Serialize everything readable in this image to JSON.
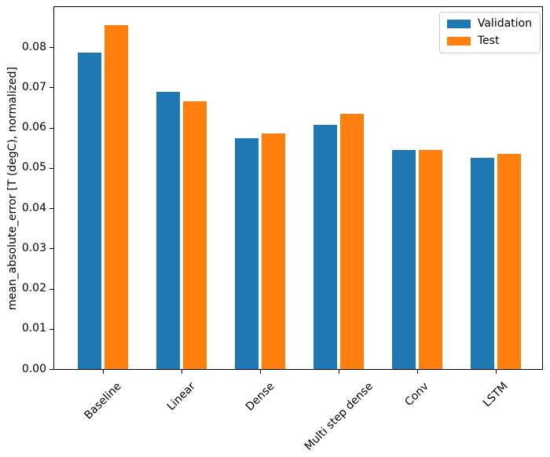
{
  "chart_data": {
    "type": "bar",
    "categories": [
      "Baseline",
      "Linear",
      "Dense",
      "Multi step dense",
      "Conv",
      "LSTM"
    ],
    "series": [
      {
        "name": "Validation",
        "color": "#1f77b4",
        "values": [
          0.0787,
          0.0689,
          0.0575,
          0.0607,
          0.0545,
          0.0525
        ]
      },
      {
        "name": "Test",
        "color": "#ff7f0e",
        "values": [
          0.0855,
          0.0666,
          0.0586,
          0.0635,
          0.0544,
          0.0535
        ]
      }
    ],
    "title": "",
    "xlabel": "",
    "ylabel": "mean_absolute_error [T (degC), normalized]",
    "ylim": [
      0,
      0.09
    ],
    "yticks": [
      0.0,
      0.01,
      0.02,
      0.03,
      0.04,
      0.05,
      0.06,
      0.07,
      0.08
    ],
    "ytick_format_decimals": 2,
    "xtick_rotation_deg": 45,
    "grid": false,
    "legend_position": "upper right",
    "legend_items": [
      {
        "label": "Validation",
        "color": "#1f77b4"
      },
      {
        "label": "Test",
        "color": "#ff7f0e"
      }
    ]
  }
}
